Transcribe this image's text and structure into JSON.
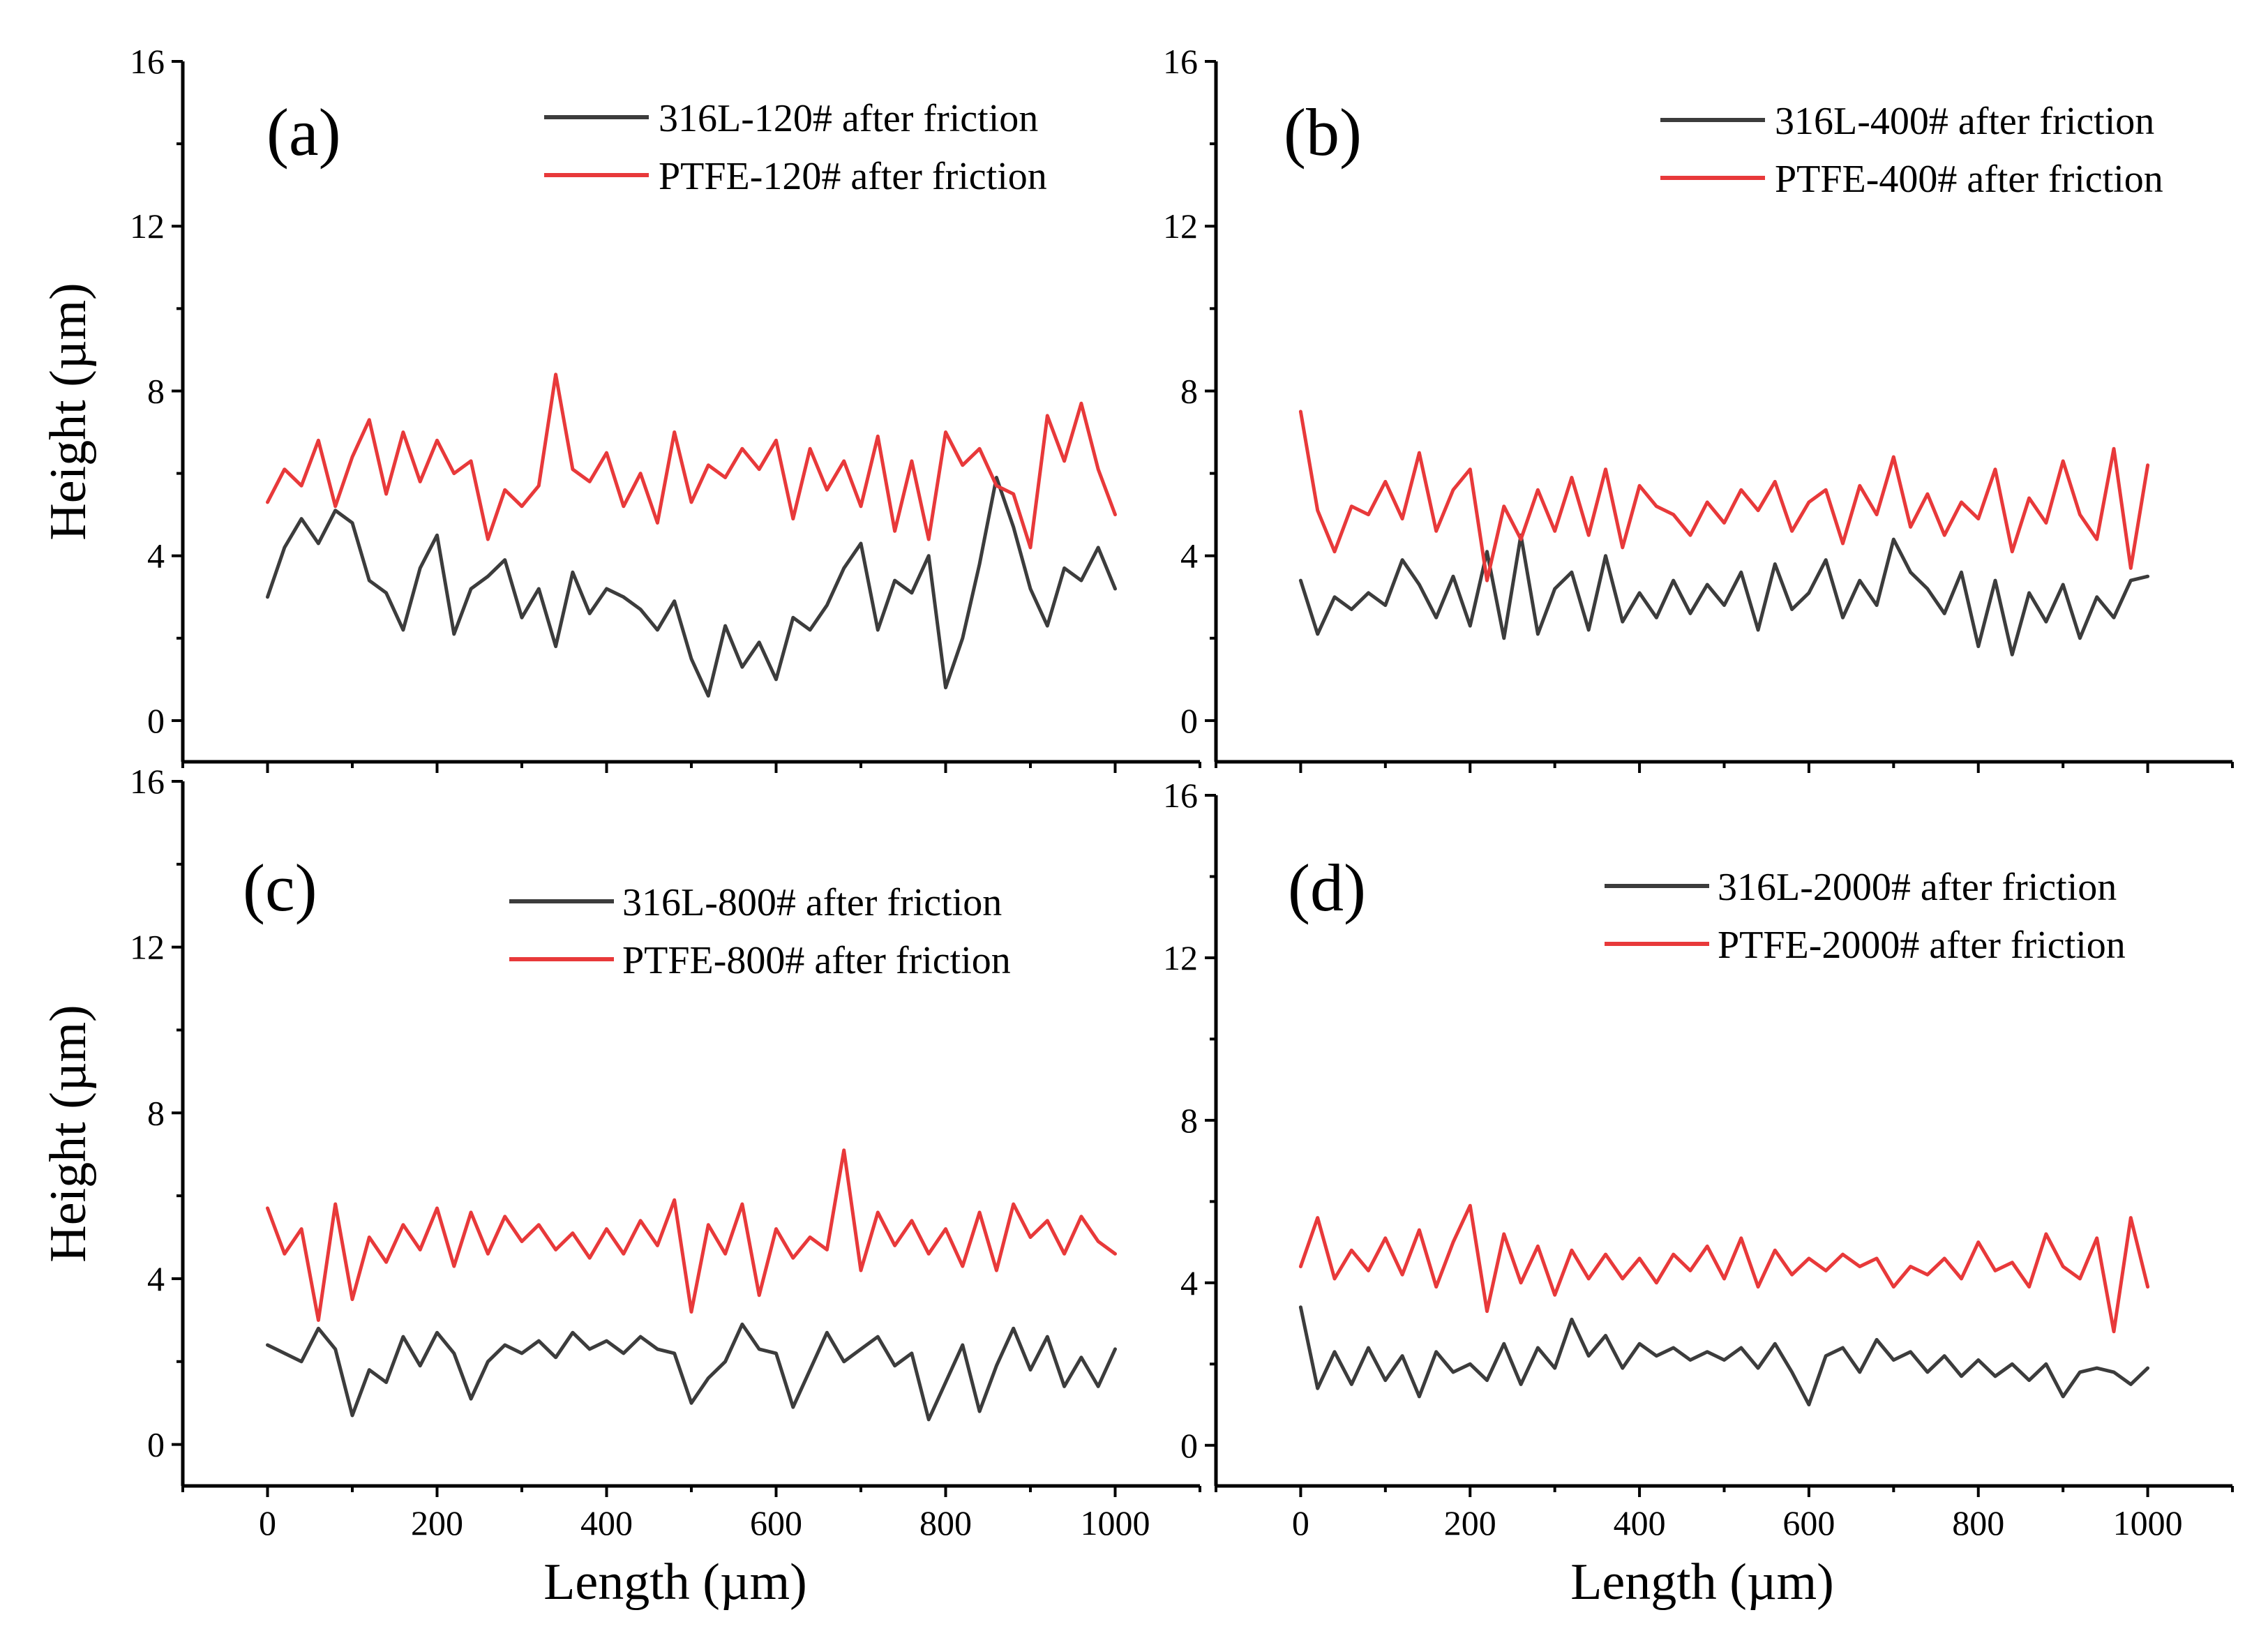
{
  "chart_data": [
    {
      "type": "line",
      "panel_label": "(a)",
      "xlabel": "",
      "ylabel": "Height (µm)",
      "xlim": [
        -100,
        1100
      ],
      "ylim": [
        -1,
        16
      ],
      "xticks": [
        0,
        200,
        400,
        600,
        800,
        1000
      ],
      "yticks": [
        0,
        4,
        8,
        12,
        16
      ],
      "show_xtick_labels": false,
      "show_ytick_labels": true,
      "legend": "top-right",
      "series": [
        {
          "name": "316L-120# after friction",
          "color": "#3c3c3c",
          "x": [
            0,
            20,
            40,
            60,
            80,
            100,
            120,
            140,
            160,
            180,
            200,
            220,
            240,
            260,
            280,
            300,
            320,
            340,
            360,
            380,
            400,
            420,
            440,
            460,
            480,
            500,
            520,
            540,
            560,
            580,
            600,
            620,
            640,
            660,
            680,
            700,
            720,
            740,
            760,
            780,
            800,
            820,
            840,
            860,
            880,
            900,
            920,
            940,
            960,
            980,
            1000
          ],
          "y": [
            3.0,
            4.2,
            4.9,
            4.3,
            5.1,
            4.8,
            3.4,
            3.1,
            2.2,
            3.7,
            4.5,
            2.1,
            3.2,
            3.5,
            3.9,
            2.5,
            3.2,
            1.8,
            3.6,
            2.6,
            3.2,
            3.0,
            2.7,
            2.2,
            2.9,
            1.5,
            0.6,
            2.3,
            1.3,
            1.9,
            1.0,
            2.5,
            2.2,
            2.8,
            3.7,
            4.3,
            2.2,
            3.4,
            3.1,
            4.0,
            0.8,
            2.0,
            3.8,
            5.9,
            4.7,
            3.2,
            2.3,
            3.7,
            3.4,
            4.2,
            3.2
          ]
        },
        {
          "name": "PTFE-120# after friction",
          "color": "#e8393a",
          "x": [
            0,
            20,
            40,
            60,
            80,
            100,
            120,
            140,
            160,
            180,
            200,
            220,
            240,
            260,
            280,
            300,
            320,
            340,
            360,
            380,
            400,
            420,
            440,
            460,
            480,
            500,
            520,
            540,
            560,
            580,
            600,
            620,
            640,
            660,
            680,
            700,
            720,
            740,
            760,
            780,
            800,
            820,
            840,
            860,
            880,
            900,
            920,
            940,
            960,
            980,
            1000
          ],
          "y": [
            5.3,
            6.1,
            5.7,
            6.8,
            5.2,
            6.4,
            7.3,
            5.5,
            7.0,
            5.8,
            6.8,
            6.0,
            6.3,
            4.4,
            5.6,
            5.2,
            5.7,
            8.4,
            6.1,
            5.8,
            6.5,
            5.2,
            6.0,
            4.8,
            7.0,
            5.3,
            6.2,
            5.9,
            6.6,
            6.1,
            6.8,
            4.9,
            6.6,
            5.6,
            6.3,
            5.2,
            6.9,
            4.6,
            6.3,
            4.4,
            7.0,
            6.2,
            6.6,
            5.7,
            5.5,
            4.2,
            7.4,
            6.3,
            7.7,
            6.1,
            5.0
          ]
        }
      ]
    },
    {
      "type": "line",
      "panel_label": "(b)",
      "xlabel": "",
      "ylabel": "",
      "xlim": [
        -100,
        1100
      ],
      "ylim": [
        -1,
        16
      ],
      "xticks": [
        0,
        200,
        400,
        600,
        800,
        1000
      ],
      "yticks": [
        0,
        4,
        8,
        12,
        16
      ],
      "show_xtick_labels": false,
      "show_ytick_labels": true,
      "legend": "top-right",
      "series": [
        {
          "name": "316L-400# after friction",
          "color": "#3c3c3c",
          "x": [
            0,
            20,
            40,
            60,
            80,
            100,
            120,
            140,
            160,
            180,
            200,
            220,
            240,
            260,
            280,
            300,
            320,
            340,
            360,
            380,
            400,
            420,
            440,
            460,
            480,
            500,
            520,
            540,
            560,
            580,
            600,
            620,
            640,
            660,
            680,
            700,
            720,
            740,
            760,
            780,
            800,
            820,
            840,
            860,
            880,
            900,
            920,
            940,
            960,
            980,
            1000
          ],
          "y": [
            3.4,
            2.1,
            3.0,
            2.7,
            3.1,
            2.8,
            3.9,
            3.3,
            2.5,
            3.5,
            2.3,
            4.1,
            2.0,
            4.5,
            2.1,
            3.2,
            3.6,
            2.2,
            4.0,
            2.4,
            3.1,
            2.5,
            3.4,
            2.6,
            3.3,
            2.8,
            3.6,
            2.2,
            3.8,
            2.7,
            3.1,
            3.9,
            2.5,
            3.4,
            2.8,
            4.4,
            3.6,
            3.2,
            2.6,
            3.6,
            1.8,
            3.4,
            1.6,
            3.1,
            2.4,
            3.3,
            2.0,
            3.0,
            2.5,
            3.4,
            3.5
          ]
        },
        {
          "name": "PTFE-400# after friction",
          "color": "#e8393a",
          "x": [
            0,
            20,
            40,
            60,
            80,
            100,
            120,
            140,
            160,
            180,
            200,
            220,
            240,
            260,
            280,
            300,
            320,
            340,
            360,
            380,
            400,
            420,
            440,
            460,
            480,
            500,
            520,
            540,
            560,
            580,
            600,
            620,
            640,
            660,
            680,
            700,
            720,
            740,
            760,
            780,
            800,
            820,
            840,
            860,
            880,
            900,
            920,
            940,
            960,
            980,
            1000
          ],
          "y": [
            7.5,
            5.1,
            4.1,
            5.2,
            5.0,
            5.8,
            4.9,
            6.5,
            4.6,
            5.6,
            6.1,
            3.4,
            5.2,
            4.4,
            5.6,
            4.6,
            5.9,
            4.5,
            6.1,
            4.2,
            5.7,
            5.2,
            5.0,
            4.5,
            5.3,
            4.8,
            5.6,
            5.1,
            5.8,
            4.6,
            5.3,
            5.6,
            4.3,
            5.7,
            5.0,
            6.4,
            4.7,
            5.5,
            4.5,
            5.3,
            4.9,
            6.1,
            4.1,
            5.4,
            4.8,
            6.3,
            5.0,
            4.4,
            6.6,
            3.7,
            6.2
          ]
        }
      ]
    },
    {
      "type": "line",
      "panel_label": "(c)",
      "xlabel": "Length (µm)",
      "ylabel": "Height (µm)",
      "xlim": [
        -100,
        1100
      ],
      "ylim": [
        -1,
        16
      ],
      "xticks": [
        0,
        200,
        400,
        600,
        800,
        1000
      ],
      "yticks": [
        0,
        4,
        8,
        12,
        16
      ],
      "show_xtick_labels": true,
      "show_ytick_labels": true,
      "legend": "top-right",
      "series": [
        {
          "name": "316L-800# after friction",
          "color": "#3c3c3c",
          "x": [
            0,
            20,
            40,
            60,
            80,
            100,
            120,
            140,
            160,
            180,
            200,
            220,
            240,
            260,
            280,
            300,
            320,
            340,
            360,
            380,
            400,
            420,
            440,
            460,
            480,
            500,
            520,
            540,
            560,
            580,
            600,
            620,
            640,
            660,
            680,
            700,
            720,
            740,
            760,
            780,
            800,
            820,
            840,
            860,
            880,
            900,
            920,
            940,
            960,
            980,
            1000
          ],
          "y": [
            2.4,
            2.2,
            2.0,
            2.8,
            2.3,
            0.7,
            1.8,
            1.5,
            2.6,
            1.9,
            2.7,
            2.2,
            1.1,
            2.0,
            2.4,
            2.2,
            2.5,
            2.1,
            2.7,
            2.3,
            2.5,
            2.2,
            2.6,
            2.3,
            2.2,
            1.0,
            1.6,
            2.0,
            2.9,
            2.3,
            2.2,
            0.9,
            1.8,
            2.7,
            2.0,
            2.3,
            2.6,
            1.9,
            2.2,
            0.6,
            1.5,
            2.4,
            0.8,
            1.9,
            2.8,
            1.8,
            2.6,
            1.4,
            2.1,
            1.4,
            2.3
          ]
        },
        {
          "name": "PTFE-800# after friction",
          "color": "#e8393a",
          "x": [
            0,
            20,
            40,
            60,
            80,
            100,
            120,
            140,
            160,
            180,
            200,
            220,
            240,
            260,
            280,
            300,
            320,
            340,
            360,
            380,
            400,
            420,
            440,
            460,
            480,
            500,
            520,
            540,
            560,
            580,
            600,
            620,
            640,
            660,
            680,
            700,
            720,
            740,
            760,
            780,
            800,
            820,
            840,
            860,
            880,
            900,
            920,
            940,
            960,
            980,
            1000
          ],
          "y": [
            5.7,
            4.6,
            5.2,
            3.0,
            5.8,
            3.5,
            5.0,
            4.4,
            5.3,
            4.7,
            5.7,
            4.3,
            5.6,
            4.6,
            5.5,
            4.9,
            5.3,
            4.7,
            5.1,
            4.5,
            5.2,
            4.6,
            5.4,
            4.8,
            5.9,
            3.2,
            5.3,
            4.6,
            5.8,
            3.6,
            5.2,
            4.5,
            5.0,
            4.7,
            7.1,
            4.2,
            5.6,
            4.8,
            5.4,
            4.6,
            5.2,
            4.3,
            5.6,
            4.2,
            5.8,
            5.0,
            5.4,
            4.6,
            5.5,
            4.9,
            4.6
          ]
        }
      ]
    },
    {
      "type": "line",
      "panel_label": "(d)",
      "xlabel": "Length (µm)",
      "ylabel": "",
      "xlim": [
        -100,
        1100
      ],
      "ylim": [
        -1,
        16
      ],
      "xticks": [
        0,
        200,
        400,
        600,
        800,
        1000
      ],
      "yticks": [
        0,
        4,
        8,
        12,
        16
      ],
      "show_xtick_labels": true,
      "show_ytick_labels": true,
      "legend": "top-right",
      "series": [
        {
          "name": "316L-2000# after friction",
          "color": "#3c3c3c",
          "x": [
            0,
            20,
            40,
            60,
            80,
            100,
            120,
            140,
            160,
            180,
            200,
            220,
            240,
            260,
            280,
            300,
            320,
            340,
            360,
            380,
            400,
            420,
            440,
            460,
            480,
            500,
            520,
            540,
            560,
            580,
            600,
            620,
            640,
            660,
            680,
            700,
            720,
            740,
            760,
            780,
            800,
            820,
            840,
            860,
            880,
            900,
            920,
            940,
            960,
            980,
            1000
          ],
          "y": [
            3.4,
            1.4,
            2.3,
            1.5,
            2.4,
            1.6,
            2.2,
            1.2,
            2.3,
            1.8,
            2.0,
            1.6,
            2.5,
            1.5,
            2.4,
            1.9,
            3.1,
            2.2,
            2.7,
            1.9,
            2.5,
            2.2,
            2.4,
            2.1,
            2.3,
            2.1,
            2.4,
            1.9,
            2.5,
            1.8,
            1.0,
            2.2,
            2.4,
            1.8,
            2.6,
            2.1,
            2.3,
            1.8,
            2.2,
            1.7,
            2.1,
            1.7,
            2.0,
            1.6,
            2.0,
            1.2,
            1.8,
            1.9,
            1.8,
            1.5,
            1.9
          ]
        },
        {
          "name": "PTFE-2000# after friction",
          "color": "#e8393a",
          "x": [
            0,
            20,
            40,
            60,
            80,
            100,
            120,
            140,
            160,
            180,
            200,
            220,
            240,
            260,
            280,
            300,
            320,
            340,
            360,
            380,
            400,
            420,
            440,
            460,
            480,
            500,
            520,
            540,
            560,
            580,
            600,
            620,
            640,
            660,
            680,
            700,
            720,
            740,
            760,
            780,
            800,
            820,
            840,
            860,
            880,
            900,
            920,
            940,
            960,
            980,
            1000
          ],
          "y": [
            4.4,
            5.6,
            4.1,
            4.8,
            4.3,
            5.1,
            4.2,
            5.3,
            3.9,
            5.0,
            5.9,
            3.3,
            5.2,
            4.0,
            4.9,
            3.7,
            4.8,
            4.1,
            4.7,
            4.1,
            4.6,
            4.0,
            4.7,
            4.3,
            4.9,
            4.1,
            5.1,
            3.9,
            4.8,
            4.2,
            4.6,
            4.3,
            4.7,
            4.4,
            4.6,
            3.9,
            4.4,
            4.2,
            4.6,
            4.1,
            5.0,
            4.3,
            4.5,
            3.9,
            5.2,
            4.4,
            4.1,
            5.1,
            2.8,
            5.6,
            3.9
          ]
        }
      ]
    }
  ]
}
